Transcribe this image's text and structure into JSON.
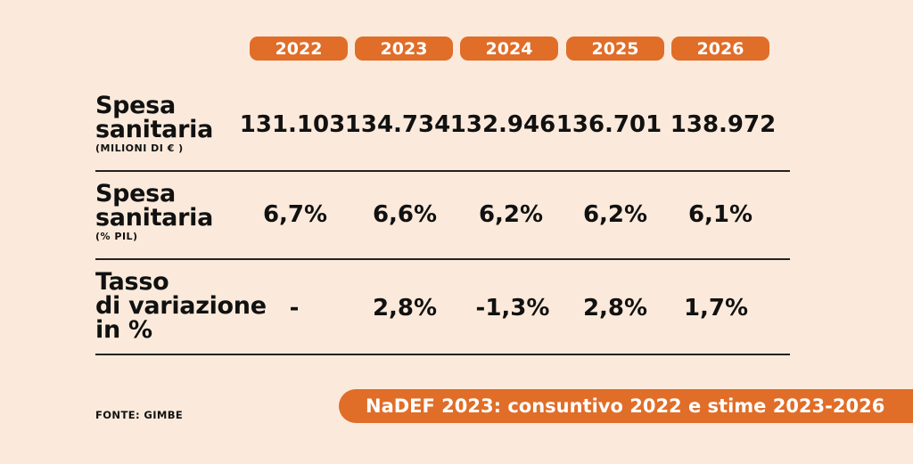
{
  "colors": {
    "accent": "#e06d28",
    "background": "#fbeadb",
    "text": "#111111"
  },
  "chart_data": {
    "type": "table",
    "columns": [
      "2022",
      "2023",
      "2024",
      "2025",
      "2026"
    ],
    "rows": [
      {
        "label": "Spesa sanitaria",
        "unit": "(MILIONI DI € )",
        "values": [
          "131.103",
          "134.734",
          "132.946",
          "136.701",
          "138.972"
        ]
      },
      {
        "label": "Spesa sanitaria",
        "unit": "(% PIL)",
        "values": [
          "6,7%",
          "6,6%",
          "6,2%",
          "6,2%",
          "6,1%"
        ]
      },
      {
        "label_lines": [
          "Tasso",
          "di variazione",
          "in %"
        ],
        "values": [
          "-",
          "2,8%",
          "-1,3%",
          "2,8%",
          "1,7%"
        ]
      }
    ],
    "title": "NaDEF 2023: consuntivo 2022 e stime 2023-2026",
    "source": "FONTE: GIMBE"
  }
}
